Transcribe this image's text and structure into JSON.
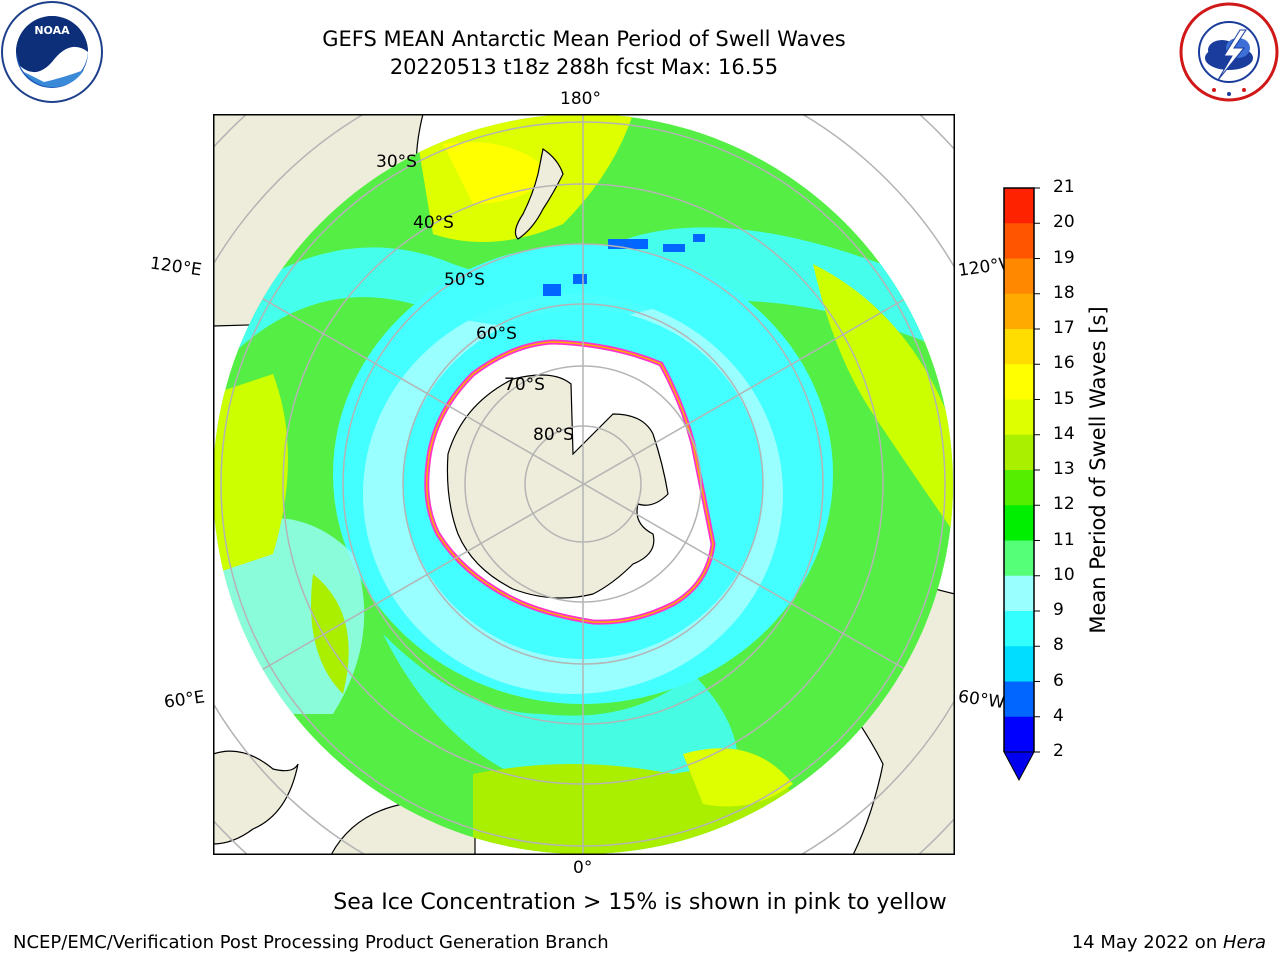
{
  "header": {
    "title_line1": "GEFS MEAN Antarctic Mean Period of Swell Waves",
    "title_line2": "20220513 t18z 288h fcst   Max: 16.55"
  },
  "logos": {
    "left": "noaa-logo",
    "right": "national-weather-service-logo"
  },
  "map": {
    "longitude_labels": [
      "180°",
      "120°E",
      "120°W",
      "60°E",
      "60°W",
      "0°"
    ],
    "latitude_labels": [
      "30°S",
      "40°S",
      "50°S",
      "60°S",
      "70°S",
      "80°S"
    ],
    "colors": {
      "land": "#eeecda",
      "sea_ice": "#ffffff",
      "sea_ice_edge": "#ff33cc",
      "grid": "#b4b4b4"
    }
  },
  "colorbar": {
    "label": "Mean Period of Swell Waves [s]",
    "ticks": [
      "2",
      "4",
      "6",
      "8",
      "9",
      "10",
      "11",
      "12",
      "13",
      "14",
      "15",
      "16",
      "17",
      "18",
      "19",
      "20",
      "21"
    ],
    "colors": [
      "#0000ff",
      "#0066ff",
      "#00ddff",
      "#33ffff",
      "#99ffff",
      "#55ff77",
      "#00ee00",
      "#55ee00",
      "#aaee00",
      "#ddff00",
      "#ffff00",
      "#ffdd00",
      "#ffaa00",
      "#ff8800",
      "#ff5500",
      "#ff2200"
    ],
    "under_color": "#0000ee"
  },
  "footer": {
    "ice_note": "Sea Ice Concentration > 15% is shown in pink to yellow",
    "credit": "NCEP/EMC/Verification Post Processing Product Generation Branch",
    "date": "14 May 2022 on ",
    "machine": "Hera"
  }
}
